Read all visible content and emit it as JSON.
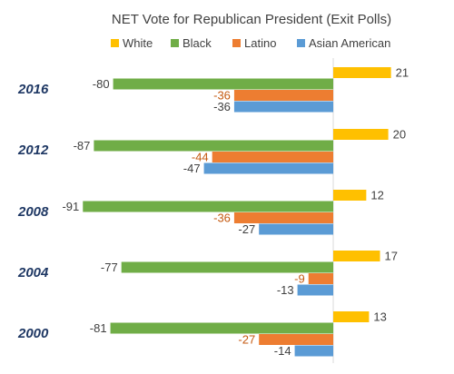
{
  "chart_data": {
    "type": "bar",
    "orientation": "horizontal",
    "title": "NET Vote for Republican President (Exit Polls)",
    "categories": [
      "2016",
      "2012",
      "2008",
      "2004",
      "2000"
    ],
    "series": [
      {
        "name": "White",
        "color": "#ffc000",
        "values": [
          21,
          20,
          12,
          17,
          13
        ]
      },
      {
        "name": "Black",
        "color": "#70ad47",
        "values": [
          -80,
          -87,
          -91,
          -77,
          -81
        ]
      },
      {
        "name": "Latino",
        "color": "#ed7d31",
        "values": [
          -36,
          -44,
          -36,
          -9,
          -27
        ]
      },
      {
        "name": "Asian American",
        "color": "#5b9bd5",
        "values": [
          -36,
          -47,
          -27,
          -13,
          -14
        ]
      }
    ],
    "xlim": [
      -91,
      21
    ],
    "grid": false,
    "legend_position": "top",
    "label_colors": {
      "default": "#404040",
      "Latino": "#c55a11"
    }
  }
}
